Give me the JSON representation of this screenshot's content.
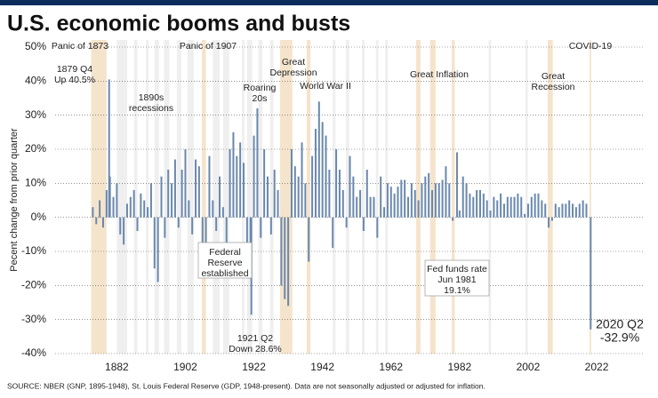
{
  "chart_data": {
    "type": "bar",
    "title": "U.S. economic booms and busts",
    "y_label": "Pecent change from prior quarter",
    "source": "SOURCE: NBER (GNP, 1895-1948), St. Louis Federal Reserve (GDP, 1948-present). Data are not seasonally adjusted or adjusted for inflation.",
    "color": "#6a88ad",
    "xlim": [
      1864,
      2036
    ],
    "xticks": [
      1882,
      1902,
      1922,
      1942,
      1962,
      1982,
      2002,
      2022
    ],
    "ylim": [
      -40,
      50
    ],
    "yticks": [
      {
        "value": -40,
        "label": "-40%"
      },
      {
        "value": -30,
        "label": "-30%"
      },
      {
        "value": -20,
        "label": "-20%"
      },
      {
        "value": -10,
        "label": "-10%"
      },
      {
        "value": 0,
        "label": "0%"
      },
      {
        "value": 10,
        "label": "10%"
      },
      {
        "value": 20,
        "label": "20%"
      },
      {
        "value": 30,
        "label": "30%"
      },
      {
        "value": 40,
        "label": "40%"
      },
      {
        "value": 50,
        "label": "50%"
      }
    ],
    "grid": true,
    "major_recessions": [
      [
        1874.5,
        1879
      ],
      [
        1906.8,
        1908
      ],
      [
        1929.6,
        1933.2
      ],
      [
        1937.4,
        1938.5
      ],
      [
        1969.3,
        1970.6
      ],
      [
        1973.4,
        1975
      ],
      [
        1979.7,
        1980.6
      ],
      [
        2007.7,
        2009.2
      ],
      [
        2019.9,
        2020.4
      ]
    ],
    "minor_recessions": [
      [
        1882,
        1885
      ],
      [
        1887,
        1888
      ],
      [
        1890.5,
        1891.3
      ],
      [
        1893,
        1894.3
      ],
      [
        1895.8,
        1897.3
      ],
      [
        1899.5,
        1900.8
      ],
      [
        1902.6,
        1904.5
      ],
      [
        1910,
        1912
      ],
      [
        1913,
        1914.8
      ],
      [
        1918.5,
        1919.2
      ],
      [
        1920,
        1921.5
      ],
      [
        1923.3,
        1924.5
      ],
      [
        1926.7,
        1927.7
      ],
      [
        1945,
        1945.8
      ],
      [
        1948.8,
        1949.8
      ],
      [
        1953.5,
        1954.3
      ],
      [
        1957.6,
        1958.3
      ],
      [
        1960.3,
        1961.1
      ],
      [
        1990.5,
        1991.2
      ],
      [
        2001.2,
        2001.9
      ]
    ],
    "x": [
      1875,
      1876,
      1877,
      1878,
      1879,
      1879.75,
      1880,
      1881,
      1882,
      1883,
      1884,
      1885,
      1886,
      1887,
      1888,
      1889,
      1890,
      1891,
      1892,
      1893,
      1894,
      1895,
      1896,
      1897,
      1898,
      1899,
      1900,
      1901,
      1902,
      1903,
      1904,
      1905,
      1906,
      1907,
      1908,
      1909,
      1910,
      1911,
      1912,
      1913,
      1914,
      1915,
      1916,
      1917,
      1918,
      1919,
      1920,
      1921,
      1921.25,
      1922,
      1923,
      1924,
      1925,
      1926,
      1927,
      1928,
      1929,
      1930,
      1931,
      1932,
      1933,
      1934,
      1935,
      1936,
      1937,
      1938,
      1939,
      1940,
      1941,
      1942,
      1943,
      1944,
      1945,
      1946,
      1947,
      1948,
      1949,
      1950,
      1951,
      1952,
      1953,
      1954,
      1955,
      1956,
      1957,
      1958,
      1959,
      1960,
      1961,
      1962,
      1963,
      1964,
      1965,
      1966,
      1967,
      1968,
      1969,
      1970,
      1971,
      1972,
      1973,
      1974,
      1975,
      1976,
      1977,
      1978,
      1979,
      1980,
      1981.25,
      1982,
      1983,
      1984,
      1985,
      1986,
      1987,
      1988,
      1989,
      1990,
      1991,
      1992,
      1993,
      1994,
      1995,
      1996,
      1997,
      1998,
      1999,
      2000,
      2001,
      2002,
      2003,
      2004,
      2005,
      2006,
      2007,
      2008,
      2009,
      2010,
      2011,
      2012,
      2013,
      2014,
      2015,
      2016,
      2017,
      2018,
      2019,
      2020.25
    ],
    "values": [
      3,
      -2,
      5,
      -3,
      8,
      40.5,
      12,
      6,
      10,
      -5,
      -8,
      4,
      6,
      8,
      -4,
      7,
      5,
      3,
      10,
      -15,
      -19,
      12,
      -6,
      14,
      10,
      17,
      -3,
      14,
      20,
      5,
      -5,
      17,
      15,
      -10,
      -9,
      18,
      5,
      -4,
      12,
      3,
      -8,
      20,
      25,
      18,
      22,
      16,
      -12,
      -18,
      -28.6,
      24,
      32,
      -6,
      20,
      12,
      -5,
      14,
      8,
      -20,
      -24,
      -26,
      20,
      15,
      12,
      22,
      10,
      -13,
      18,
      26,
      34,
      28,
      24,
      14,
      -9,
      20,
      14,
      8,
      -3,
      18,
      12,
      6,
      8,
      -4,
      14,
      6,
      6,
      -6,
      12,
      3,
      10,
      9,
      7,
      9,
      11,
      11,
      6,
      10,
      8,
      5,
      10,
      12,
      13,
      8,
      10,
      10,
      11,
      15,
      10,
      -1,
      19.1,
      2,
      12,
      10,
      7,
      6,
      8,
      8,
      7,
      5,
      2,
      6,
      5,
      7,
      4,
      6,
      6,
      6,
      7,
      6,
      1,
      4,
      6,
      7,
      7,
      5,
      4,
      -3,
      -1,
      4,
      3,
      4,
      4,
      5,
      4,
      3,
      4,
      5,
      4,
      -32.9
    ],
    "annotations": [
      {
        "lines": [
          "Panic of 1873"
        ]
      },
      {
        "lines": [
          "1879 Q4",
          "Up 40.5%"
        ]
      },
      {
        "lines": [
          "1890s",
          "recessions"
        ]
      },
      {
        "lines": [
          "Panic of 1907"
        ]
      },
      {
        "lines": [
          "Roaring",
          "20s"
        ]
      },
      {
        "lines": [
          "Great",
          "Depression"
        ]
      },
      {
        "lines": [
          "World War II"
        ]
      },
      {
        "lines": [
          "Great Inflation"
        ]
      },
      {
        "lines": [
          "Great",
          "Recession"
        ]
      },
      {
        "lines": [
          "COVID-19"
        ]
      },
      {
        "lines": [
          "Federal",
          "Reserve",
          "established"
        ]
      },
      {
        "lines": [
          "1921 Q2",
          "Down 28.6%"
        ]
      },
      {
        "lines": [
          "Fed funds rate",
          "Jun 1981",
          "19.1%"
        ]
      },
      {
        "lines": [
          "2020 Q2",
          "-32.9%"
        ]
      }
    ]
  }
}
